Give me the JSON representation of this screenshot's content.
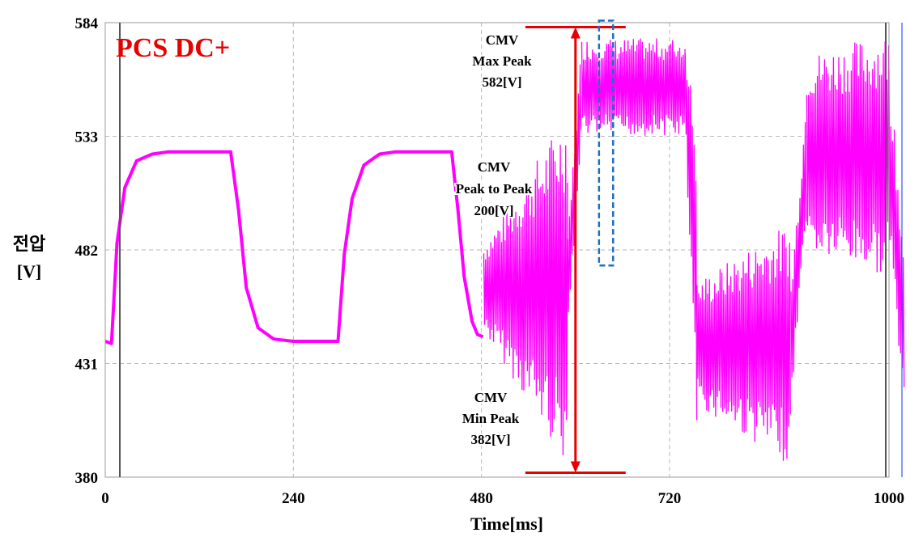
{
  "chart_data": {
    "type": "line",
    "title": "PCS DC+",
    "xlabel": "Time[ms]",
    "ylabel": [
      "전압",
      "[V]"
    ],
    "xlim": [
      0,
      1000
    ],
    "ylim": [
      380,
      584
    ],
    "x_ticks": [
      "0",
      "240",
      "480",
      "720",
      "1000"
    ],
    "y_ticks": [
      "584",
      "533",
      "482",
      "431",
      "380"
    ],
    "grid": true,
    "series_color": "#ff00ff",
    "annotation_color": "#e60000",
    "highlight_color": "#1f6fbf",
    "series": [
      {
        "values": [
          [
            0,
            441
          ],
          [
            8,
            440
          ],
          [
            15,
            485
          ],
          [
            25,
            510
          ],
          [
            40,
            522
          ],
          [
            60,
            525
          ],
          [
            80,
            526
          ],
          [
            160,
            526
          ],
          [
            170,
            500
          ],
          [
            180,
            465
          ],
          [
            195,
            447
          ],
          [
            215,
            442
          ],
          [
            240,
            441
          ],
          [
            297,
            441
          ],
          [
            305,
            480
          ],
          [
            315,
            505
          ],
          [
            330,
            520
          ],
          [
            350,
            525
          ],
          [
            370,
            526
          ],
          [
            442,
            526
          ],
          [
            450,
            500
          ],
          [
            458,
            470
          ],
          [
            468,
            450
          ],
          [
            475,
            444
          ],
          [
            482,
            443
          ]
        ],
        "noisy_segments": [
          {
            "x": [
              483,
              590
            ],
            "center": 465,
            "half_amplitude": [
              20,
              80
            ]
          },
          {
            "x": [
              590,
              608
            ],
            "center": [
              465,
              555
            ],
            "half_amplitude": 22
          },
          {
            "x": [
              608,
              740
            ],
            "center": 555,
            "half_amplitude": 22
          },
          {
            "x": [
              740,
              755
            ],
            "center": [
              555,
              465
            ],
            "half_amplitude": [
              22,
              70
            ]
          },
          {
            "x": [
              755,
              875
            ],
            "center": 440,
            "half_amplitude": [
              28,
              55
            ]
          },
          {
            "x": [
              875,
              895
            ],
            "center": [
              440,
              525
            ],
            "half_amplitude": 28
          },
          {
            "x": [
              895,
              1000
            ],
            "center": 525,
            "half_amplitude": [
              45,
              55
            ]
          },
          {
            "x": [
              1000,
              1020
            ],
            "center": [
              525,
              440
            ],
            "half_amplitude": 40
          }
        ]
      }
    ],
    "annotations": [
      {
        "lines": [
          "CMV",
          "Max Peak",
          "582[V]"
        ]
      },
      {
        "lines": [
          "CMV",
          "Peak to Peak",
          "200[V]"
        ]
      },
      {
        "lines": [
          "CMV",
          "Min Peak",
          "382[V]"
        ]
      }
    ],
    "peak_marker": {
      "max": 582,
      "min": 382,
      "x_range": [
        536,
        664
      ],
      "arrow_x": 600
    },
    "highlight_box": {
      "x": [
        630,
        648
      ],
      "y": [
        475,
        582
      ]
    }
  }
}
